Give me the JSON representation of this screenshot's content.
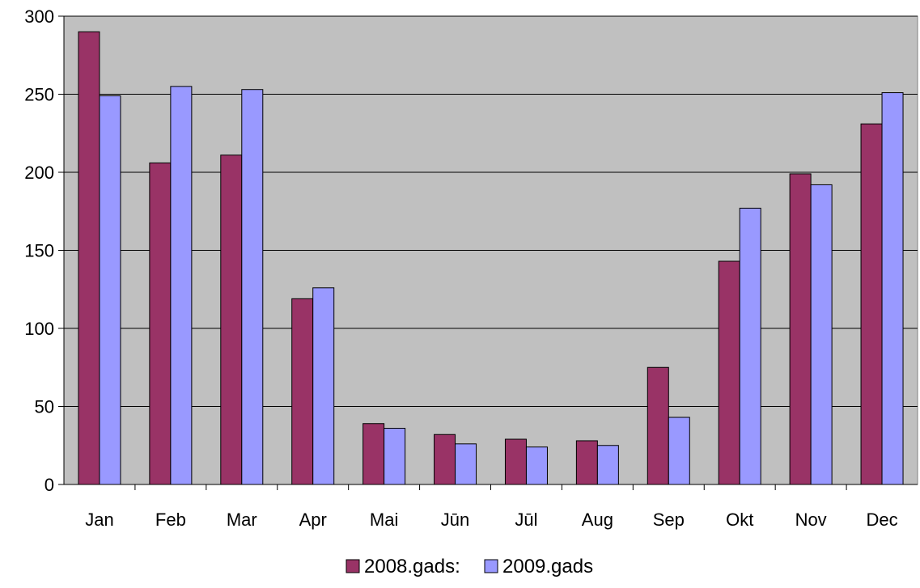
{
  "chart_data": {
    "type": "bar",
    "title": "",
    "xlabel": "",
    "ylabel": "",
    "categories": [
      "Jan",
      "Feb",
      "Mar",
      "Apr",
      "Mai",
      "Jūn",
      "Jūl",
      "Aug",
      "Sep",
      "Okt",
      "Nov",
      "Dec"
    ],
    "series": [
      {
        "name": "2008.gads:",
        "color": "#993366",
        "values": [
          290,
          206,
          211,
          119,
          39,
          32,
          29,
          28,
          75,
          143,
          199,
          231
        ]
      },
      {
        "name": "2009.gads",
        "color": "#9999ff",
        "values": [
          249,
          255,
          253,
          126,
          36,
          26,
          24,
          25,
          43,
          177,
          192,
          251
        ]
      }
    ],
    "ylim": [
      0,
      300
    ],
    "yticks": [
      0,
      50,
      100,
      150,
      200,
      250,
      300
    ],
    "grid": true,
    "plot_background": "#c0c0c0",
    "legend_position": "bottom-center"
  }
}
